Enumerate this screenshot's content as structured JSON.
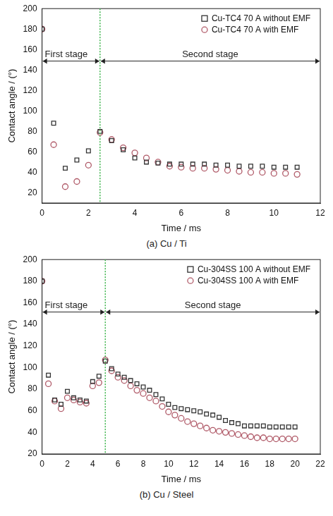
{
  "chart_data": [
    {
      "type": "scatter",
      "subtitle": "(a) Cu / Ti",
      "x_label": "Time / ms",
      "y_label": "Contact angle / (°)",
      "annotations": [
        "First stage",
        "Second stage"
      ],
      "stage_boundary": 2.5,
      "x": [
        0,
        0.5,
        1,
        1.5,
        2,
        2.5,
        3,
        3.5,
        4,
        4.5,
        5,
        5.5,
        6,
        6.5,
        7,
        7.5,
        8,
        8.5,
        9,
        9.5,
        10,
        10.5,
        11
      ],
      "series": [
        {
          "name": "Cu-TC4 70 A without EMF",
          "color": "#333333",
          "marker": "square",
          "values": [
            180,
            88,
            44,
            52,
            61,
            80,
            71,
            62,
            54,
            50,
            49,
            48,
            48,
            48,
            48,
            47,
            47,
            46,
            46,
            46,
            45,
            45,
            45
          ]
        },
        {
          "name": "Cu-TC4 70 A with EMF",
          "color": "#b05a68",
          "marker": "circle",
          "values": [
            180,
            67,
            26,
            31,
            47,
            79,
            72,
            64,
            59,
            54,
            50,
            46,
            45,
            44,
            44,
            43,
            42,
            41,
            40,
            40,
            39,
            39,
            38
          ]
        }
      ],
      "xlim": [
        0,
        12
      ],
      "xticks": [
        0,
        2,
        4,
        6,
        8,
        10,
        12
      ],
      "ylim": [
        10,
        200
      ],
      "yticks": [
        20,
        40,
        60,
        80,
        100,
        120,
        140,
        160,
        180,
        200
      ],
      "grid": false,
      "legend": "upper right"
    },
    {
      "type": "scatter",
      "subtitle": "(b) Cu / Steel",
      "x_label": "Time / ms",
      "y_label": "Contact angle / (°)",
      "annotations": [
        "First stage",
        "Second stage"
      ],
      "stage_boundary": 5,
      "x": [
        0,
        0.5,
        1,
        1.5,
        2,
        2.5,
        3,
        3.5,
        4,
        4.5,
        5,
        5.5,
        6,
        6.5,
        7,
        7.5,
        8,
        8.5,
        9,
        9.5,
        10,
        10.5,
        11,
        11.5,
        12,
        12.5,
        13,
        13.5,
        14,
        14.5,
        15,
        15.5,
        16,
        16.5,
        17,
        17.5,
        18,
        18.5,
        19,
        19.5,
        20
      ],
      "series": [
        {
          "name": "Cu-304SS 100 A without EMF",
          "color": "#333333",
          "marker": "square",
          "values": [
            180,
            93,
            70,
            66,
            78,
            72,
            70,
            69,
            87,
            92,
            106,
            99,
            94,
            91,
            88,
            85,
            82,
            79,
            75,
            71,
            66,
            63,
            62,
            61,
            60,
            59,
            57,
            56,
            54,
            51,
            49,
            48,
            46,
            46,
            46,
            46,
            45,
            45,
            45,
            45,
            45
          ]
        },
        {
          "name": "Cu-304SS 100 A with EMF",
          "color": "#b05a68",
          "marker": "circle",
          "values": [
            180,
            85,
            69,
            62,
            72,
            70,
            68,
            67,
            83,
            86,
            107,
            97,
            91,
            88,
            83,
            79,
            76,
            72,
            69,
            64,
            59,
            56,
            53,
            50,
            48,
            46,
            44,
            42,
            41,
            40,
            39,
            38,
            37,
            36,
            35,
            35,
            34,
            34,
            34,
            34,
            34
          ]
        }
      ],
      "xlim": [
        0,
        22
      ],
      "xticks": [
        0,
        2,
        4,
        6,
        8,
        10,
        12,
        14,
        16,
        18,
        20,
        22
      ],
      "ylim": [
        20,
        200
      ],
      "yticks": [
        20,
        40,
        60,
        80,
        100,
        120,
        140,
        160,
        180,
        200
      ],
      "grid": false,
      "legend": "upper right"
    }
  ]
}
